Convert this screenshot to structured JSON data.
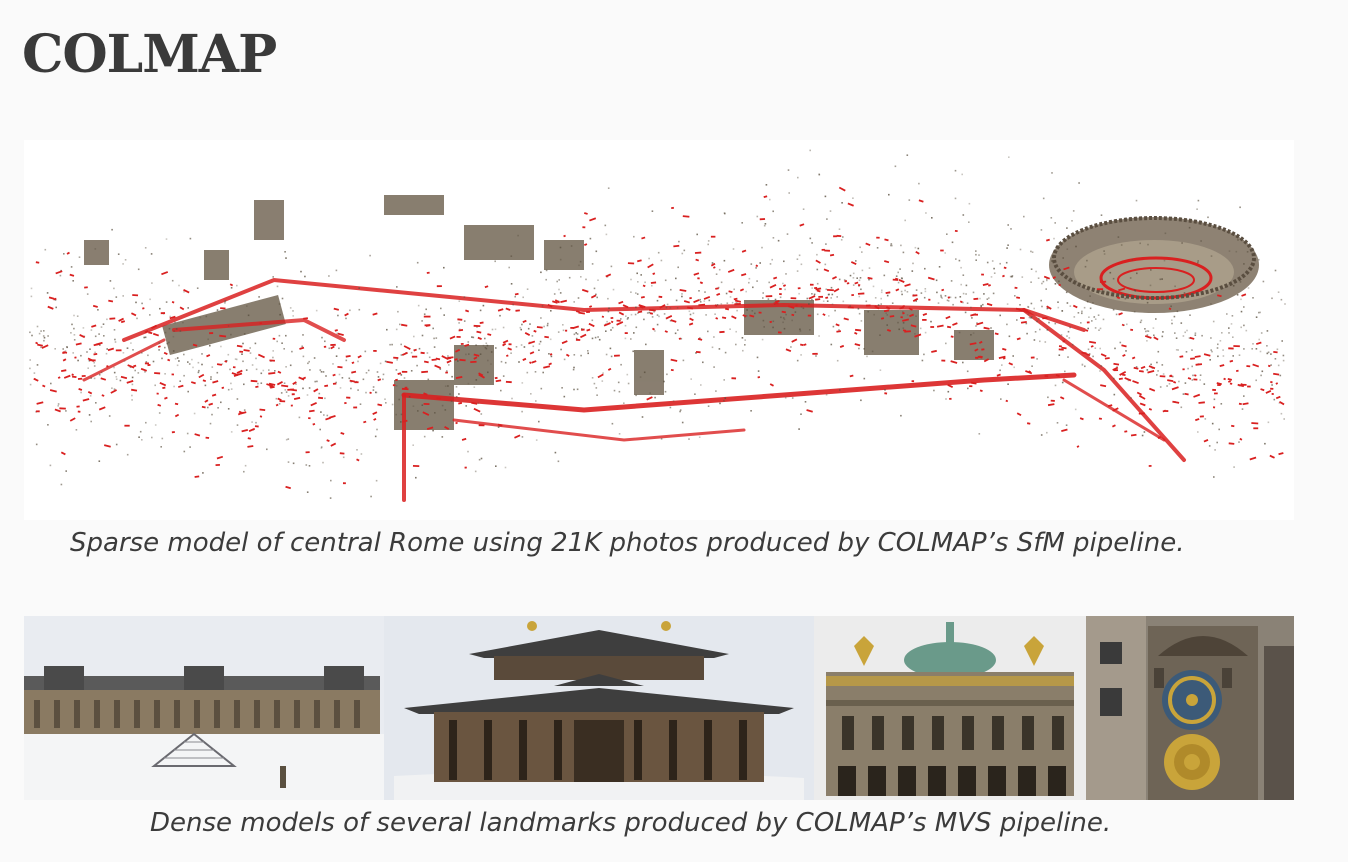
{
  "page": {
    "title": "COLMAP"
  },
  "sparse_figure": {
    "caption": "Sparse model of central Rome using 21K photos produced by COLMAP’s SfM pipeline.",
    "colors": {
      "background": "#ffffff",
      "points": "#5a5040",
      "cameras": "#d92020"
    }
  },
  "dense_figure": {
    "caption": "Dense models of several landmarks produced by COLMAP’s MVS pipeline.",
    "panels": [
      {
        "landmark": "louvre"
      },
      {
        "landmark": "todai-ji"
      },
      {
        "landmark": "palais-garnier"
      },
      {
        "landmark": "prague-astronomical-clock"
      }
    ],
    "colors": {
      "sky": "#e4e8ee",
      "stone": "#8a7a62",
      "roof": "#4a4a4a",
      "gold": "#c9a43a"
    }
  }
}
